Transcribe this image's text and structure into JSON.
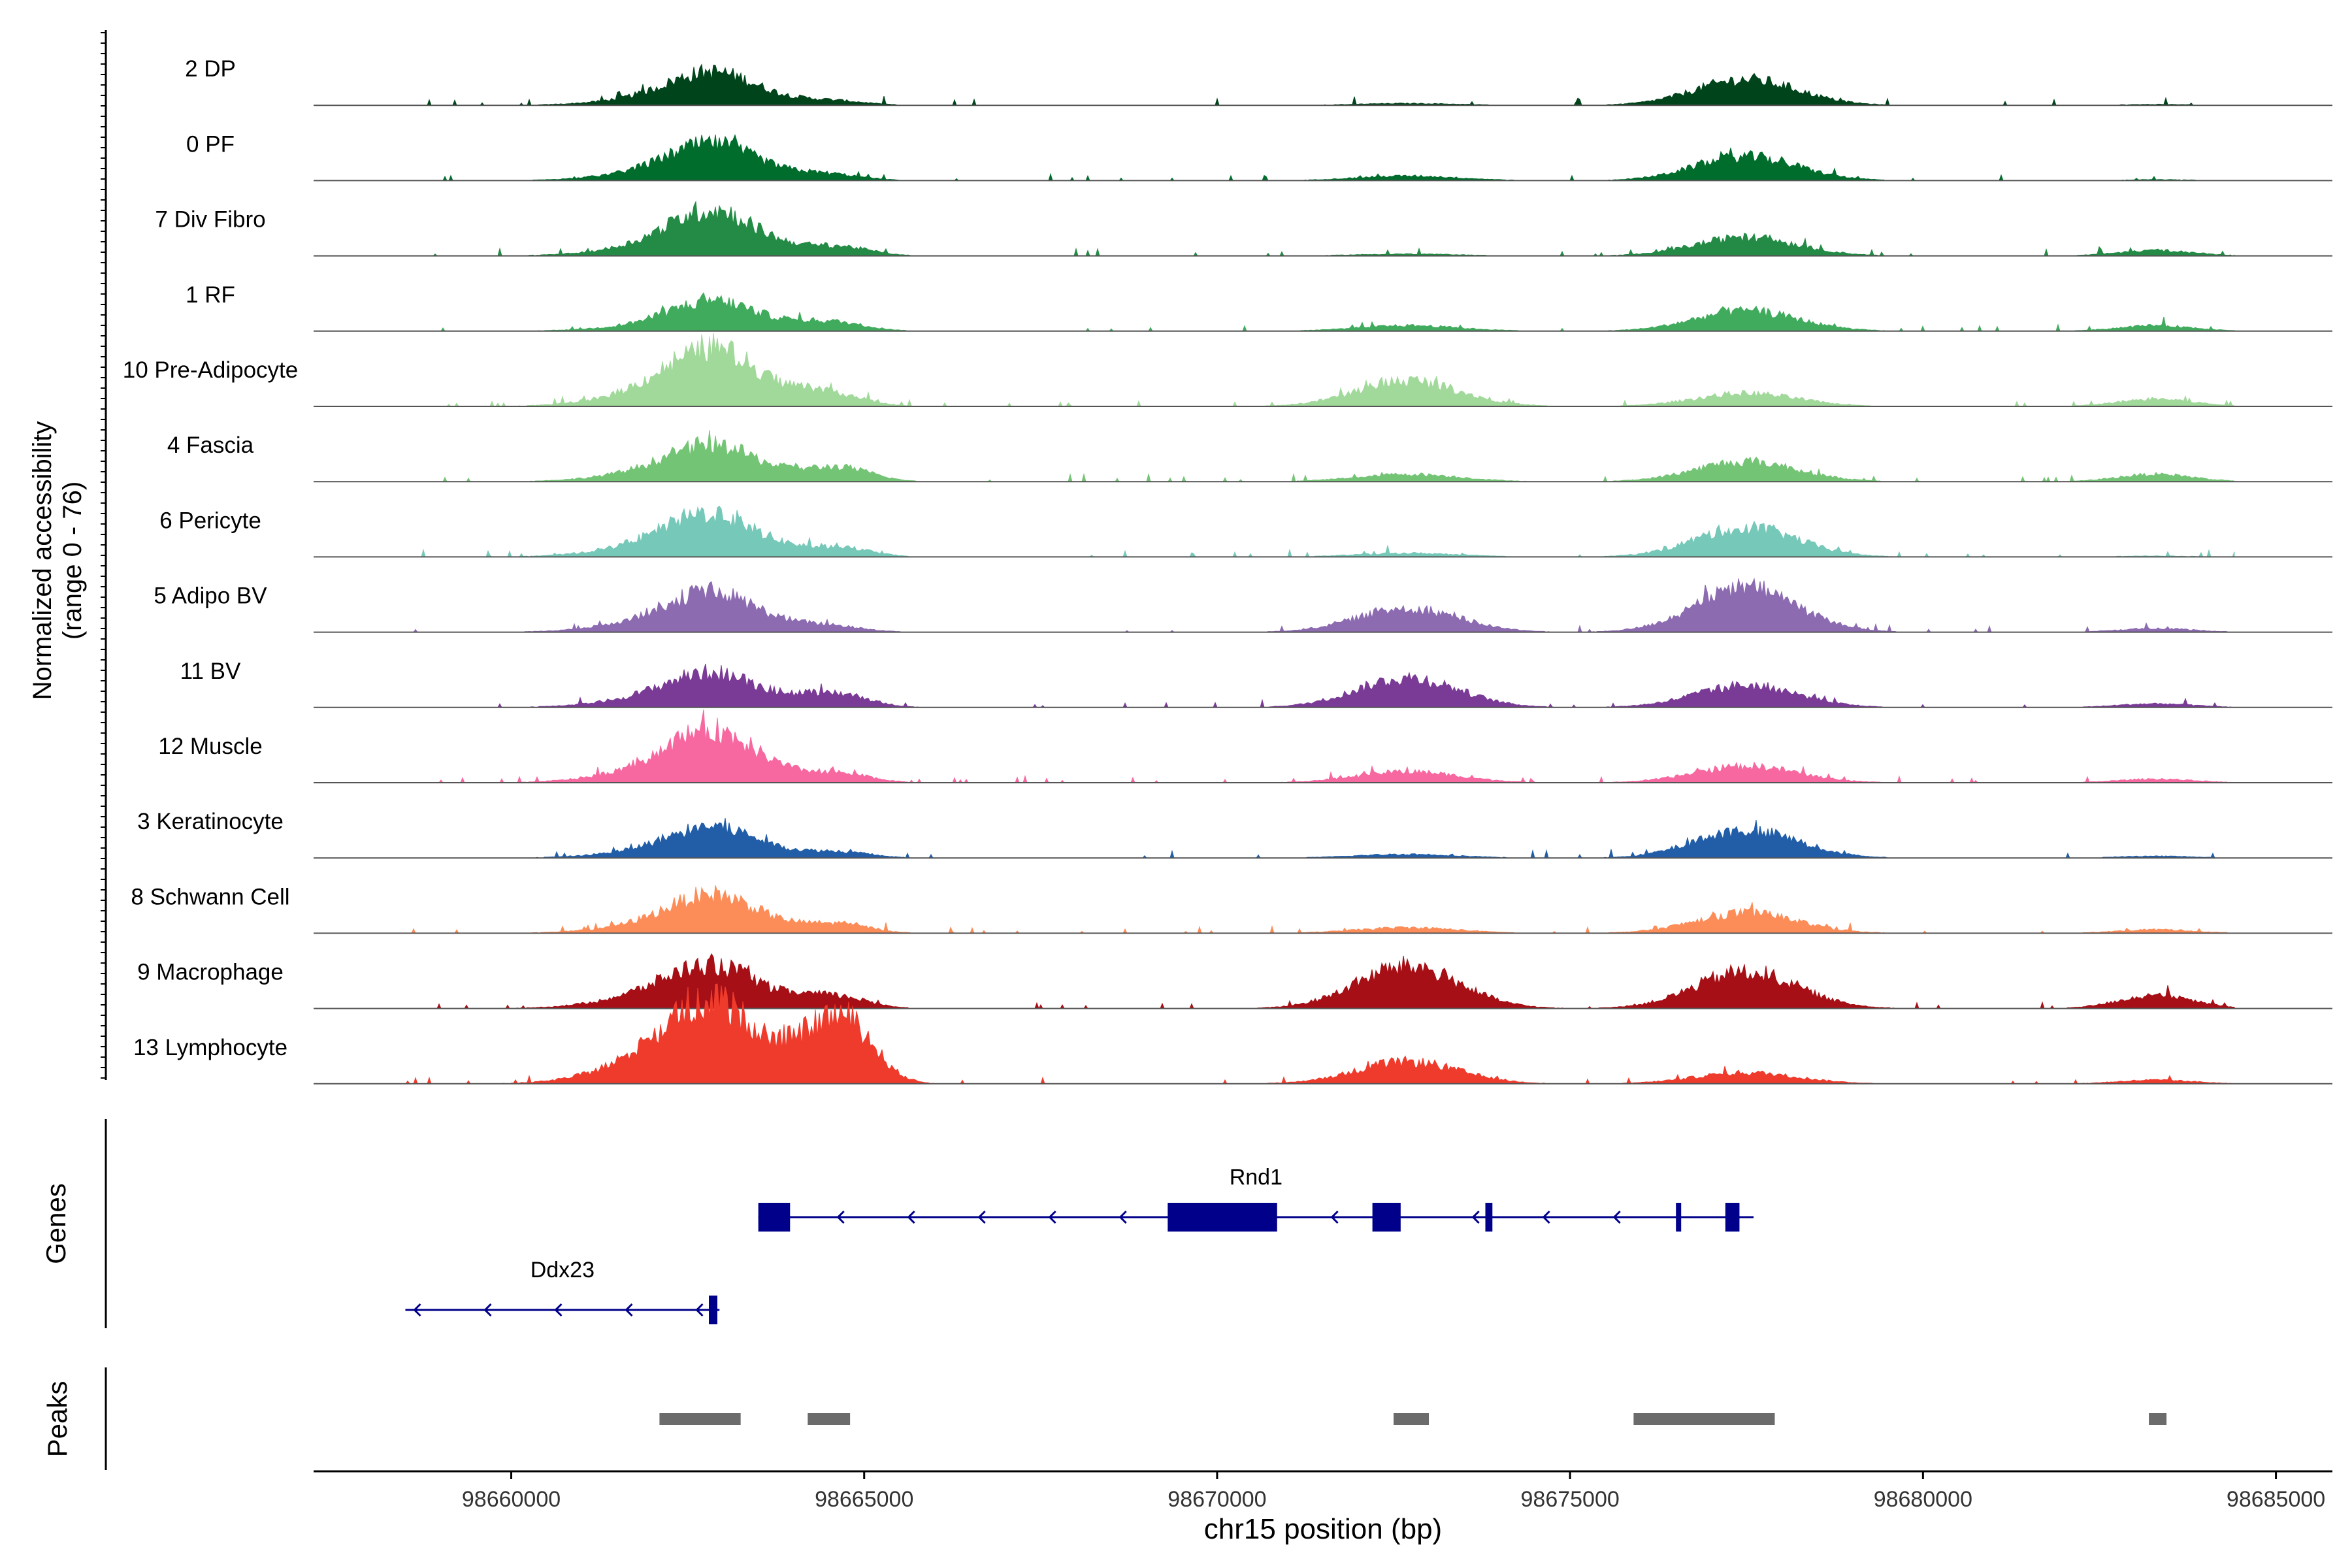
{
  "chart_data": {
    "type": "area",
    "title": "",
    "xlabel": "chr15 position (bp)",
    "ylabel": "Normalized accessibility",
    "ylabel_sub": "(range 0 - 76)",
    "xlim": [
      98657200,
      98685800
    ],
    "ylim": [
      0,
      76
    ],
    "x_ticks": [
      98660000,
      98665000,
      98670000,
      98675000,
      98680000,
      98685000
    ],
    "x_tick_labels": [
      "98660000",
      "98665000",
      "98670000",
      "98675000",
      "98680000",
      "98685000"
    ],
    "peak_centers": [
      98662400,
      98662900,
      98664300,
      98664800,
      98672700,
      98677500,
      98683300
    ],
    "tracks": [
      {
        "name": "2 DP",
        "color": "#00441b",
        "amps": [
          10,
          28,
          4,
          2,
          2,
          28,
          1
        ]
      },
      {
        "name": "0 PF",
        "color": "#006d2c",
        "amps": [
          12,
          30,
          6,
          2,
          5,
          26,
          1
        ]
      },
      {
        "name": "7 Div Fibro",
        "color": "#238b45",
        "amps": [
          14,
          38,
          6,
          6,
          2,
          20,
          6
        ]
      },
      {
        "name": "1 RF",
        "color": "#41ab5d",
        "amps": [
          8,
          26,
          8,
          4,
          6,
          22,
          6
        ]
      },
      {
        "name": "10 Pre-Adipocyte",
        "color": "#a1d99b",
        "amps": [
          22,
          45,
          14,
          4,
          28,
          14,
          8
        ]
      },
      {
        "name": "4 Fascia",
        "color": "#74c476",
        "amps": [
          14,
          28,
          8,
          10,
          8,
          22,
          8
        ]
      },
      {
        "name": "6 Pericyte",
        "color": "#76c8b8",
        "amps": [
          18,
          32,
          6,
          6,
          4,
          32,
          1
        ]
      },
      {
        "name": "5 Adipo BV",
        "color": "#8c6bb1",
        "amps": [
          16,
          30,
          6,
          2,
          26,
          48,
          4
        ]
      },
      {
        "name": "11 BV",
        "color": "#7a3b96",
        "amps": [
          14,
          26,
          10,
          8,
          32,
          24,
          4
        ]
      },
      {
        "name": "12 Muscle",
        "color": "#f768a1",
        "amps": [
          20,
          40,
          6,
          6,
          12,
          18,
          4
        ]
      },
      {
        "name": "3 Keratinocyte",
        "color": "#225ea8",
        "amps": [
          10,
          26,
          4,
          4,
          4,
          30,
          2
        ]
      },
      {
        "name": "8 Schwann Cell",
        "color": "#fc8d59",
        "amps": [
          12,
          32,
          6,
          6,
          6,
          22,
          4
        ]
      },
      {
        "name": "9 Macrophage",
        "color": "#a50f15",
        "amps": [
          20,
          30,
          10,
          6,
          46,
          40,
          14
        ]
      },
      {
        "name": "13 Lymphocyte",
        "color": "#ef3b2c",
        "amps": [
          38,
          58,
          36,
          50,
          24,
          12,
          4
        ]
      }
    ],
    "genes_label": "Genes",
    "genes": [
      {
        "name": "Rnd1",
        "start": 98663500,
        "end": 98677600,
        "strand": "-",
        "row": 0,
        "exons": [
          [
            98663500,
            98663950
          ],
          [
            98669300,
            98670850
          ],
          [
            98672200,
            98672600
          ],
          [
            98673800,
            98673900
          ],
          [
            98676500,
            98676560
          ],
          [
            98677200,
            98677400
          ]
        ]
      },
      {
        "name": "Ddx23",
        "start": 98658500,
        "end": 98662950,
        "strand": "-",
        "row": 1,
        "exons": [
          [
            98662800,
            98662920
          ]
        ]
      }
    ],
    "peaks_label": "Peaks",
    "peaks": [
      [
        98662100,
        98663250
      ],
      [
        98664200,
        98664800
      ],
      [
        98672500,
        98673000
      ],
      [
        98675900,
        98677900
      ],
      [
        98683200,
        98683450
      ]
    ],
    "colors": {
      "gene": "#00008b",
      "peak": "#6b6b6b",
      "axis": "#000000",
      "baseline": "#555555"
    }
  }
}
